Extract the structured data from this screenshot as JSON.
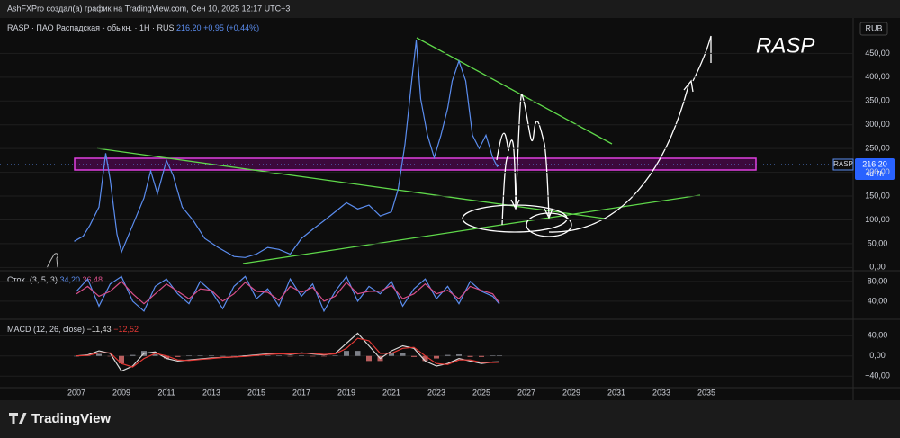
{
  "header": {
    "caption": "AshFXPro создал(а) график на TradingView.com, Сен 10, 2025 12:17 UTC+3"
  },
  "chart_data": [
    {
      "type": "line",
      "symbol": "RASP · ПАО Распадская - обыкн. · 1H · RUS",
      "last_label": "216,20",
      "change_label": "+0,95 (+0,44%)",
      "currency": "RUB",
      "annotation": "RASP",
      "price_tag": {
        "symbol": "RASP",
        "price": "216,20",
        "countdown": "4d 7h"
      },
      "xlim": [
        2003.6,
        2041.52
      ],
      "ylim": [
        -5,
        515
      ],
      "yticks": [
        {
          "value": 0,
          "label": "0,00"
        },
        {
          "value": 50,
          "label": "50,00"
        },
        {
          "value": 100,
          "label": "100,00"
        },
        {
          "value": 150,
          "label": "150,00"
        },
        {
          "value": 200,
          "label": "200,00"
        },
        {
          "value": 250,
          "label": "250,00"
        },
        {
          "value": 300,
          "label": "300,00"
        },
        {
          "value": 350,
          "label": "350,00"
        },
        {
          "value": 400,
          "label": "400,00"
        },
        {
          "value": 450,
          "label": "450,00"
        }
      ],
      "x": [
        2006.9,
        2007.3,
        2007.6,
        2008.0,
        2008.3,
        2008.5,
        2008.8,
        2009.0,
        2009.5,
        2010.0,
        2010.3,
        2010.6,
        2011.0,
        2011.3,
        2011.7,
        2012.2,
        2012.7,
        2013.3,
        2014.0,
        2014.5,
        2015.0,
        2015.5,
        2016.0,
        2016.5,
        2017.0,
        2017.5,
        2018.0,
        2018.5,
        2019.0,
        2019.5,
        2020.0,
        2020.5,
        2021.0,
        2021.3,
        2021.6,
        2021.9,
        2022.1,
        2022.3,
        2022.6,
        2022.9,
        2023.2,
        2023.5,
        2023.7,
        2024.0,
        2024.3,
        2024.6,
        2024.9,
        2025.2,
        2025.5,
        2025.7,
        2025.8
      ],
      "series": [
        {
          "color": "#5b8def",
          "style": "line",
          "values": [
            55,
            66,
            89,
            127,
            240,
            184,
            70,
            32,
            89,
            146,
            203,
            155,
            225,
            193,
            127,
            98,
            61,
            42,
            23,
            21,
            28,
            42,
            38,
            28,
            61,
            80,
            98,
            117,
            136,
            123,
            131,
            108,
            117,
            165,
            259,
            392,
            477,
            354,
            278,
            231,
            278,
            335,
            392,
            434,
            392,
            278,
            250,
            278,
            231,
            212,
            216.2
          ]
        }
      ]
    },
    {
      "type": "line",
      "title": "Стох. (3, 5, 3)",
      "xlim": [
        2003.6,
        2041.52
      ],
      "ylim": [
        9,
        98
      ],
      "yticks": [
        {
          "value": 40,
          "label": "40,00"
        },
        {
          "value": 80,
          "label": "80,00"
        }
      ],
      "x": [
        2007,
        2007.5,
        2008,
        2008.5,
        2009,
        2009.5,
        2010,
        2010.5,
        2011,
        2011.5,
        2012,
        2012.5,
        2013,
        2013.5,
        2014,
        2014.5,
        2015,
        2015.5,
        2016,
        2016.5,
        2017,
        2017.5,
        2018,
        2018.5,
        2019,
        2019.5,
        2020,
        2020.5,
        2021,
        2021.5,
        2022,
        2022.5,
        2023,
        2023.5,
        2024,
        2024.5,
        2025,
        2025.5,
        2025.8
      ],
      "series": [
        {
          "color": "#5b8def",
          "style": "line",
          "label": "34,20",
          "values": [
            60,
            85,
            30,
            75,
            90,
            40,
            20,
            70,
            85,
            55,
            35,
            80,
            60,
            25,
            70,
            90,
            45,
            65,
            30,
            85,
            50,
            75,
            20,
            60,
            90,
            40,
            70,
            55,
            80,
            30,
            65,
            85,
            45,
            70,
            35,
            80,
            60,
            50,
            34.2
          ]
        },
        {
          "color": "#d94f8a",
          "style": "line",
          "label": "36,48",
          "values": [
            55,
            70,
            50,
            60,
            80,
            55,
            35,
            55,
            75,
            60,
            45,
            65,
            62,
            40,
            55,
            78,
            60,
            58,
            42,
            70,
            58,
            68,
            40,
            50,
            78,
            55,
            60,
            60,
            72,
            45,
            55,
            75,
            55,
            62,
            45,
            70,
            62,
            55,
            36.48
          ]
        }
      ]
    },
    {
      "type": "line",
      "title": "MACD (12, 26, close)",
      "xlim": [
        2003.6,
        2041.52
      ],
      "ylim": [
        -61,
        69
      ],
      "yticks": [
        {
          "value": -40,
          "label": "−40,00"
        },
        {
          "value": 0,
          "label": "0,00"
        },
        {
          "value": 40,
          "label": "40,00"
        }
      ],
      "xticks": [
        2007,
        2009,
        2011,
        2013,
        2015,
        2017,
        2019,
        2021,
        2023,
        2025,
        2027,
        2029,
        2031,
        2033,
        2035
      ],
      "x": [
        2007,
        2007.5,
        2008,
        2008.5,
        2009,
        2009.5,
        2010,
        2010.5,
        2011,
        2011.5,
        2012,
        2012.5,
        2013,
        2013.5,
        2014,
        2014.5,
        2015,
        2015.5,
        2016,
        2016.5,
        2017,
        2017.5,
        2018,
        2018.5,
        2019,
        2019.5,
        2020,
        2020.5,
        2021,
        2021.5,
        2022,
        2022.5,
        2023,
        2023.5,
        2024,
        2024.5,
        2025,
        2025.5,
        2025.8
      ],
      "series": [
        {
          "color": "#9a9ea8",
          "style": "histogram",
          "values": [
            0,
            1,
            4,
            -1,
            -15,
            2,
            10,
            3,
            -5,
            -2,
            1,
            1,
            1,
            0,
            0,
            1,
            1,
            1,
            1,
            -1,
            1,
            -1,
            -1,
            1,
            10,
            10,
            -10,
            -10,
            5,
            5,
            -2,
            -10,
            -5,
            2,
            3,
            -2,
            -2,
            1,
            1.09
          ]
        },
        {
          "color": "#d8d8d8",
          "style": "line",
          "label": "−11,43",
          "values": [
            0,
            2,
            10,
            5,
            -30,
            -20,
            5,
            8,
            -5,
            -10,
            -8,
            -6,
            -4,
            -3,
            -2,
            0,
            2,
            4,
            5,
            3,
            6,
            4,
            2,
            5,
            25,
            45,
            20,
            -5,
            10,
            20,
            15,
            -10,
            -20,
            -15,
            -5,
            -10,
            -15,
            -12,
            -11.43
          ]
        },
        {
          "color": "#e53935",
          "style": "line",
          "label": "−12,52",
          "values": [
            0,
            1,
            6,
            6,
            -15,
            -22,
            -5,
            5,
            0,
            -8,
            -9,
            -7,
            -5,
            -3,
            -2,
            -1,
            1,
            3,
            4,
            4,
            5,
            5,
            3,
            4,
            15,
            35,
            30,
            5,
            5,
            15,
            17,
            0,
            -15,
            -17,
            -8,
            -8,
            -13,
            -13,
            -12.52
          ]
        }
      ]
    }
  ],
  "footer": {
    "brand": "TradingView"
  }
}
